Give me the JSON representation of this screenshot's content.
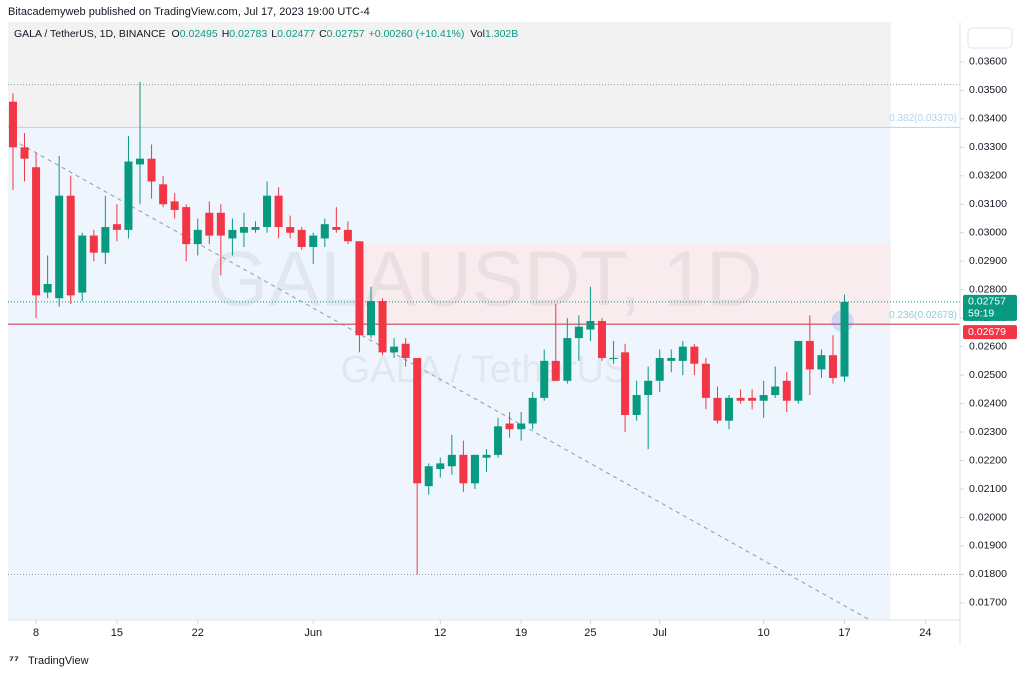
{
  "header": {
    "publisher": "Bitacademyweb published on TradingView.com, Jul 17, 2023 19:00 UTC-4",
    "footer": "TradingView"
  },
  "chart_data": {
    "type": "candlestick",
    "legend": {
      "symbol": "GALA / TetherUS, 1D, BINANCE",
      "items": [
        {
          "key": "O",
          "value": "0.02495"
        },
        {
          "key": "H",
          "value": "0.02783"
        },
        {
          "key": "L",
          "value": "0.02477"
        },
        {
          "key": "C",
          "value": "0.02757"
        }
      ],
      "change": "+0.00260 (+10.41%)",
      "volume": {
        "key": "Vol",
        "value": "1.302B"
      }
    },
    "watermark": {
      "symbol": "GALAUSDT, 1D",
      "name": "GALA / TetherUS"
    },
    "up_color": "#089981",
    "down_color": "#f23645",
    "open": [
      0.0346,
      0.033,
      0.0323,
      0.0279,
      0.0277,
      0.0313,
      0.0279,
      0.0299,
      0.0293,
      0.0303,
      0.0301,
      0.0324,
      0.0326,
      0.0317,
      0.0311,
      0.0309,
      0.0296,
      0.0307,
      0.0307,
      0.0298,
      0.03,
      0.0301,
      0.0302,
      0.0313,
      0.0302,
      0.0301,
      0.0295,
      0.0298,
      0.0302,
      0.0301,
      0.0297,
      0.0264,
      0.0276,
      0.0258,
      0.0261,
      0.0256,
      0.0211,
      0.0217,
      0.0218,
      0.0222,
      0.0212,
      0.0221,
      0.0222,
      0.0233,
      0.0231,
      0.0233,
      0.0242,
      0.0255,
      0.0248,
      0.0263,
      0.0266,
      0.0269,
      0.0256,
      0.0258,
      0.0236,
      0.0243,
      0.0248,
      0.0255,
      0.0255,
      0.026,
      0.0254,
      0.0242,
      0.0234,
      0.0242,
      0.0242,
      0.0241,
      0.0243,
      0.0248,
      0.0241,
      0.0262,
      0.0252,
      0.0257,
      0.02495
    ],
    "high": [
      0.0349,
      0.0335,
      0.0328,
      0.0292,
      0.0327,
      0.032,
      0.03,
      0.0301,
      0.0313,
      0.031,
      0.0334,
      0.0353,
      0.0331,
      0.032,
      0.0314,
      0.031,
      0.0305,
      0.0311,
      0.031,
      0.0305,
      0.0307,
      0.0304,
      0.0318,
      0.0316,
      0.0306,
      0.0302,
      0.03,
      0.0305,
      0.0309,
      0.0304,
      0.0297,
      0.0281,
      0.0277,
      0.0263,
      0.0263,
      0.0256,
      0.0219,
      0.0221,
      0.0229,
      0.0227,
      0.0222,
      0.0224,
      0.0235,
      0.0237,
      0.0237,
      0.0244,
      0.0259,
      0.0275,
      0.027,
      0.0271,
      0.0281,
      0.027,
      0.0262,
      0.0261,
      0.0248,
      0.0253,
      0.0259,
      0.0259,
      0.0262,
      0.0261,
      0.0256,
      0.0246,
      0.0243,
      0.0245,
      0.0245,
      0.0248,
      0.0253,
      0.0251,
      0.0262,
      0.0271,
      0.0259,
      0.0264,
      0.02783
    ],
    "low": [
      0.0315,
      0.0318,
      0.027,
      0.0277,
      0.0274,
      0.0275,
      0.0276,
      0.029,
      0.0289,
      0.0297,
      0.0298,
      0.031,
      0.0312,
      0.0309,
      0.0305,
      0.029,
      0.0292,
      0.0296,
      0.0285,
      0.0292,
      0.0295,
      0.03,
      0.03,
      0.0298,
      0.0298,
      0.0294,
      0.0289,
      0.0295,
      0.03,
      0.0296,
      0.0258,
      0.0263,
      0.0257,
      0.0256,
      0.0253,
      0.018,
      0.0208,
      0.0214,
      0.0215,
      0.0209,
      0.021,
      0.0216,
      0.0221,
      0.0228,
      0.0227,
      0.0231,
      0.0241,
      0.0248,
      0.0247,
      0.0255,
      0.0262,
      0.0255,
      0.0254,
      0.023,
      0.0234,
      0.0224,
      0.0244,
      0.0251,
      0.025,
      0.025,
      0.0238,
      0.0233,
      0.0231,
      0.024,
      0.0238,
      0.0235,
      0.0242,
      0.0237,
      0.024,
      0.0243,
      0.0249,
      0.0247,
      0.02477
    ],
    "close": [
      0.033,
      0.0326,
      0.0278,
      0.0282,
      0.0313,
      0.0278,
      0.0299,
      0.0293,
      0.0302,
      0.0301,
      0.0325,
      0.0326,
      0.0318,
      0.031,
      0.0308,
      0.0296,
      0.0301,
      0.0299,
      0.0299,
      0.0301,
      0.0302,
      0.0302,
      0.0313,
      0.0302,
      0.03,
      0.0295,
      0.0299,
      0.0303,
      0.0301,
      0.0297,
      0.0264,
      0.0276,
      0.0258,
      0.026,
      0.0256,
      0.0212,
      0.0218,
      0.0219,
      0.0222,
      0.0212,
      0.0222,
      0.0222,
      0.0232,
      0.0231,
      0.0233,
      0.0242,
      0.0255,
      0.0248,
      0.0263,
      0.0267,
      0.0269,
      0.0256,
      0.0256,
      0.0236,
      0.0243,
      0.0248,
      0.0256,
      0.0256,
      0.026,
      0.0254,
      0.0242,
      0.0234,
      0.0242,
      0.0241,
      0.0241,
      0.0243,
      0.0246,
      0.0241,
      0.0262,
      0.0252,
      0.0257,
      0.0249,
      0.02757
    ],
    "close_label": "0.02757",
    "countdown": "59:19",
    "xlim": [
      -0.43,
      82
    ],
    "xticks": [
      {
        "value": 2,
        "label": "8"
      },
      {
        "value": 9,
        "label": "15"
      },
      {
        "value": 16,
        "label": "22"
      },
      {
        "value": 26,
        "label": "Jun"
      },
      {
        "value": 37,
        "label": "12"
      },
      {
        "value": 44,
        "label": "19"
      },
      {
        "value": 50,
        "label": "25"
      },
      {
        "value": 56,
        "label": "Jul"
      },
      {
        "value": 65,
        "label": "10"
      },
      {
        "value": 72,
        "label": "17"
      },
      {
        "value": 79,
        "label": "24"
      }
    ],
    "ylim": [
      0.0164,
      0.0374
    ],
    "yticks": [
      {
        "value": 0.036,
        "label": "0.03600"
      },
      {
        "value": 0.035,
        "label": "0.03500"
      },
      {
        "value": 0.034,
        "label": "0.03400"
      },
      {
        "value": 0.033,
        "label": "0.03300"
      },
      {
        "value": 0.032,
        "label": "0.03200"
      },
      {
        "value": 0.031,
        "label": "0.03100"
      },
      {
        "value": 0.03,
        "label": "0.03000"
      },
      {
        "value": 0.029,
        "label": "0.02900"
      },
      {
        "value": 0.028,
        "label": "0.02800"
      },
      {
        "value": 0.027,
        "label": "0.02700"
      },
      {
        "value": 0.026,
        "label": "0.02600"
      },
      {
        "value": 0.025,
        "label": "0.02500"
      },
      {
        "value": 0.024,
        "label": "0.02400"
      },
      {
        "value": 0.023,
        "label": "0.02300"
      },
      {
        "value": 0.022,
        "label": "0.02200"
      },
      {
        "value": 0.021,
        "label": "0.02100"
      },
      {
        "value": 0.02,
        "label": "0.02000"
      },
      {
        "value": 0.019,
        "label": "0.01900"
      },
      {
        "value": 0.018,
        "label": "0.01800"
      },
      {
        "value": 0.017,
        "label": "0.01700"
      }
    ],
    "zones": [
      {
        "x": [
          -0.43,
          76
        ],
        "y": [
          0.0337,
          0.0374
        ],
        "color": "#f2f2f3"
      },
      {
        "x": [
          -0.43,
          76
        ],
        "y": [
          0.0164,
          0.0337
        ],
        "color": "#eef5fd"
      },
      {
        "x": [
          30,
          76
        ],
        "y": [
          0.02678,
          0.0296
        ],
        "color": "#f9ecef"
      }
    ],
    "fib_levels": [
      {
        "value": 0.0337,
        "label": "0.382(0.03370)",
        "color": "#b3d4ee"
      },
      {
        "value": 0.02678,
        "label": "0.236(0.02678)",
        "color": "#8fcfd8"
      }
    ],
    "price_line": {
      "value": 0.02679,
      "label": "0.02679",
      "color": "#f23645"
    },
    "dotted_levels": [
      0.0352,
      0.018
    ],
    "trendline": {
      "x": [
        0,
        74.2
      ],
      "y": [
        0.03326,
        0.0164
      ]
    }
  }
}
